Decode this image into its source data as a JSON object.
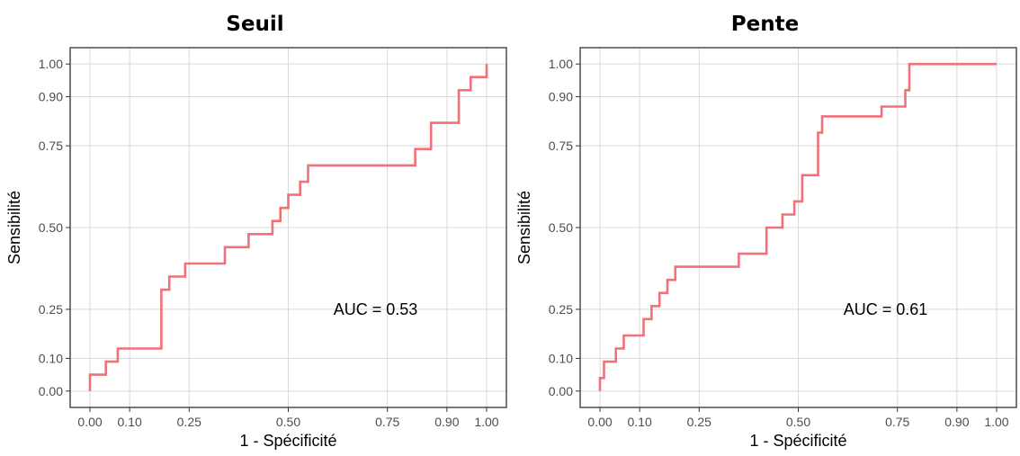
{
  "chart_data": [
    {
      "type": "line",
      "title": "Seuil",
      "xlabel": "1 - Spécificité",
      "ylabel": "Sensibilité",
      "xlim": [
        0,
        1
      ],
      "ylim": [
        0,
        1
      ],
      "xticks": [
        0.0,
        0.1,
        0.25,
        0.5,
        0.75,
        0.9,
        1.0
      ],
      "xtick_labels": [
        "0.00",
        "0.10",
        "0.25",
        "0.50",
        "0.75",
        "0.90",
        "1.00"
      ],
      "yticks": [
        0.0,
        0.1,
        0.25,
        0.5,
        0.75,
        0.9,
        1.0
      ],
      "ytick_labels": [
        "0.00",
        "0.10",
        "0.25",
        "0.50",
        "0.75",
        "0.90",
        "1.00"
      ],
      "grid": true,
      "annotation": {
        "text": "AUC = 0.53",
        "x": 0.72,
        "y": 0.25
      },
      "series": [
        {
          "color": "#f07178",
          "x": [
            0.0,
            0.0,
            0.04,
            0.04,
            0.07,
            0.07,
            0.18,
            0.18,
            0.2,
            0.2,
            0.24,
            0.24,
            0.34,
            0.34,
            0.4,
            0.4,
            0.46,
            0.46,
            0.48,
            0.48,
            0.5,
            0.5,
            0.53,
            0.53,
            0.55,
            0.55,
            0.82,
            0.82,
            0.86,
            0.86,
            0.93,
            0.93,
            0.96,
            0.96,
            1.0,
            1.0
          ],
          "y": [
            0.0,
            0.05,
            0.05,
            0.09,
            0.09,
            0.13,
            0.13,
            0.31,
            0.31,
            0.35,
            0.35,
            0.39,
            0.39,
            0.44,
            0.44,
            0.48,
            0.48,
            0.52,
            0.52,
            0.56,
            0.56,
            0.6,
            0.6,
            0.64,
            0.64,
            0.69,
            0.69,
            0.74,
            0.74,
            0.82,
            0.82,
            0.92,
            0.92,
            0.96,
            0.96,
            1.0
          ]
        }
      ]
    },
    {
      "type": "line",
      "title": "Pente",
      "xlabel": "1 - Spécificité",
      "ylabel": "Sensibilité",
      "xlim": [
        0,
        1
      ],
      "ylim": [
        0,
        1
      ],
      "xticks": [
        0.0,
        0.1,
        0.25,
        0.5,
        0.75,
        0.9,
        1.0
      ],
      "xtick_labels": [
        "0.00",
        "0.10",
        "0.25",
        "0.50",
        "0.75",
        "0.90",
        "1.00"
      ],
      "yticks": [
        0.0,
        0.1,
        0.25,
        0.5,
        0.75,
        0.9,
        1.0
      ],
      "ytick_labels": [
        "0.00",
        "0.10",
        "0.25",
        "0.50",
        "0.75",
        "0.90",
        "1.00"
      ],
      "grid": true,
      "annotation": {
        "text": "AUC = 0.61",
        "x": 0.72,
        "y": 0.25
      },
      "series": [
        {
          "color": "#f07178",
          "x": [
            0.0,
            0.0,
            0.01,
            0.01,
            0.04,
            0.04,
            0.06,
            0.06,
            0.11,
            0.11,
            0.13,
            0.13,
            0.15,
            0.15,
            0.17,
            0.17,
            0.19,
            0.19,
            0.35,
            0.35,
            0.42,
            0.42,
            0.46,
            0.46,
            0.49,
            0.49,
            0.51,
            0.51,
            0.55,
            0.55,
            0.56,
            0.56,
            0.71,
            0.71,
            0.77,
            0.77,
            0.78,
            0.78,
            1.0
          ],
          "y": [
            0.0,
            0.04,
            0.04,
            0.09,
            0.09,
            0.13,
            0.13,
            0.17,
            0.17,
            0.22,
            0.22,
            0.26,
            0.26,
            0.3,
            0.3,
            0.34,
            0.34,
            0.38,
            0.38,
            0.42,
            0.42,
            0.5,
            0.5,
            0.54,
            0.54,
            0.58,
            0.58,
            0.66,
            0.66,
            0.79,
            0.79,
            0.84,
            0.84,
            0.87,
            0.87,
            0.92,
            0.92,
            1.0,
            1.0
          ]
        }
      ]
    }
  ]
}
